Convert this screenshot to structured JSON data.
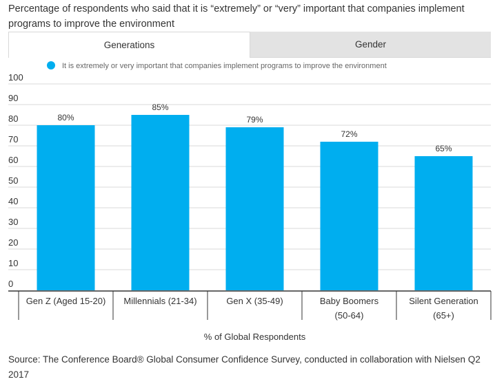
{
  "header": {
    "title": "Percentage of respondents who said that it is “extremely” or “very” important that companies implement programs to improve the environment"
  },
  "tabs": [
    {
      "label": "Generations",
      "active": true
    },
    {
      "label": "Gender",
      "active": false
    }
  ],
  "colors": {
    "bar": "#00aeef",
    "grid": "#d9d9d9",
    "axis": "#333333"
  },
  "chart_data": {
    "type": "bar",
    "title": "Percentage of respondents who said that it is “extremely” or “very” important that companies implement programs to improve the environment",
    "legend": "It is extremely or very important that companies implement programs to improve the environment",
    "xlabel": "% of Global Respondents",
    "ylabel": "",
    "ylim": [
      0,
      100
    ],
    "yticks": [
      0,
      10,
      20,
      30,
      40,
      50,
      60,
      70,
      80,
      90,
      100
    ],
    "categories": [
      [
        "Gen Z (Aged 15-20)"
      ],
      [
        "Millennials (21-34)"
      ],
      [
        "Gen X (35-49)"
      ],
      [
        "Baby Boomers",
        "(50-64)"
      ],
      [
        "Silent Generation",
        "(65+)"
      ]
    ],
    "values": [
      80,
      85,
      79,
      72,
      65
    ],
    "data_labels": [
      "80%",
      "85%",
      "79%",
      "72%",
      "65%"
    ]
  },
  "footer": {
    "source": "Source: The Conference Board® Global Consumer Confidence Survey, conducted in collaboration with Nielsen Q2 2017"
  }
}
